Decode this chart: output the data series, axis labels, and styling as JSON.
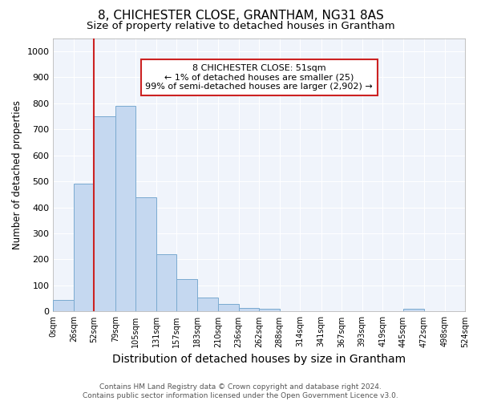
{
  "title": "8, CHICHESTER CLOSE, GRANTHAM, NG31 8AS",
  "subtitle": "Size of property relative to detached houses in Grantham",
  "xlabel": "Distribution of detached houses by size in Grantham",
  "ylabel": "Number of detached properties",
  "footer_line1": "Contains HM Land Registry data © Crown copyright and database right 2024.",
  "footer_line2": "Contains public sector information licensed under the Open Government Licence v3.0.",
  "bin_labels": [
    "0sqm",
    "26sqm",
    "52sqm",
    "79sqm",
    "105sqm",
    "131sqm",
    "157sqm",
    "183sqm",
    "210sqm",
    "236sqm",
    "262sqm",
    "288sqm",
    "314sqm",
    "341sqm",
    "367sqm",
    "393sqm",
    "419sqm",
    "445sqm",
    "472sqm",
    "498sqm",
    "524sqm"
  ],
  "bin_edges": [
    0,
    26,
    52,
    79,
    105,
    131,
    157,
    183,
    210,
    236,
    262,
    288,
    314,
    341,
    367,
    393,
    419,
    445,
    472,
    498,
    524
  ],
  "bar_values": [
    45,
    490,
    750,
    790,
    440,
    220,
    125,
    53,
    30,
    15,
    10,
    0,
    0,
    0,
    0,
    0,
    0,
    10,
    0,
    0
  ],
  "bar_color": "#c5d8f0",
  "bar_edge_color": "#7aaad0",
  "property_line_x": 52,
  "property_line_color": "#cc2222",
  "annotation_text": "8 CHICHESTER CLOSE: 51sqm\n← 1% of detached houses are smaller (25)\n99% of semi-detached houses are larger (2,902) →",
  "annotation_box_color": "#cc2222",
  "ylim": [
    0,
    1050
  ],
  "yticks": [
    0,
    100,
    200,
    300,
    400,
    500,
    600,
    700,
    800,
    900,
    1000
  ],
  "bg_color": "#ffffff",
  "plot_bg_color": "#f0f4fb",
  "grid_color": "#ffffff",
  "title_fontsize": 11,
  "subtitle_fontsize": 9.5,
  "xlabel_fontsize": 10,
  "ylabel_fontsize": 8.5
}
